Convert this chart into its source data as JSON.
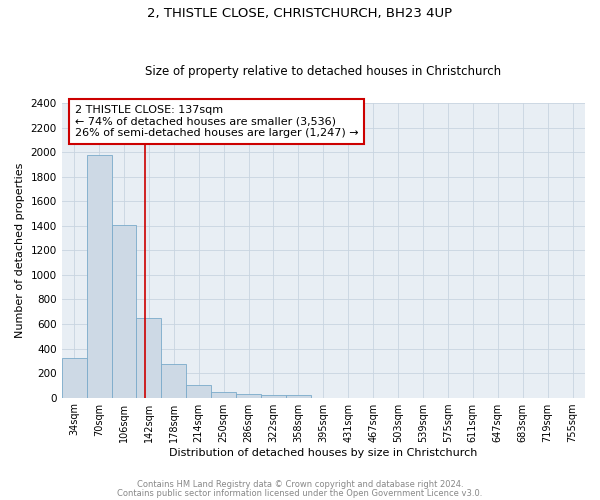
{
  "title": "2, THISTLE CLOSE, CHRISTCHURCH, BH23 4UP",
  "subtitle": "Size of property relative to detached houses in Christchurch",
  "xlabel": "Distribution of detached houses by size in Christchurch",
  "ylabel": "Number of detached properties",
  "bar_labels": [
    "34sqm",
    "70sqm",
    "106sqm",
    "142sqm",
    "178sqm",
    "214sqm",
    "250sqm",
    "286sqm",
    "322sqm",
    "358sqm",
    "395sqm",
    "431sqm",
    "467sqm",
    "503sqm",
    "539sqm",
    "575sqm",
    "611sqm",
    "647sqm",
    "683sqm",
    "719sqm",
    "755sqm"
  ],
  "bar_values": [
    325,
    1980,
    1410,
    650,
    275,
    105,
    45,
    28,
    20,
    25,
    0,
    0,
    0,
    0,
    0,
    0,
    0,
    0,
    0,
    0,
    0
  ],
  "bar_color": "#cdd9e5",
  "bar_edge_color": "#7aaaca",
  "ylim": [
    0,
    2400
  ],
  "yticks": [
    0,
    200,
    400,
    600,
    800,
    1000,
    1200,
    1400,
    1600,
    1800,
    2000,
    2200,
    2400
  ],
  "vline_x": 2.83,
  "vline_color": "#cc0000",
  "annotation_title": "2 THISTLE CLOSE: 137sqm",
  "annotation_line1": "← 74% of detached houses are smaller (3,536)",
  "annotation_line2": "26% of semi-detached houses are larger (1,247) →",
  "annotation_box_color": "#cc0000",
  "footnote1": "Contains HM Land Registry data © Crown copyright and database right 2024.",
  "footnote2": "Contains public sector information licensed under the Open Government Licence v3.0.",
  "background_color": "#ffffff",
  "plot_bg_color": "#e8eef4",
  "grid_color": "#c8d4e0"
}
